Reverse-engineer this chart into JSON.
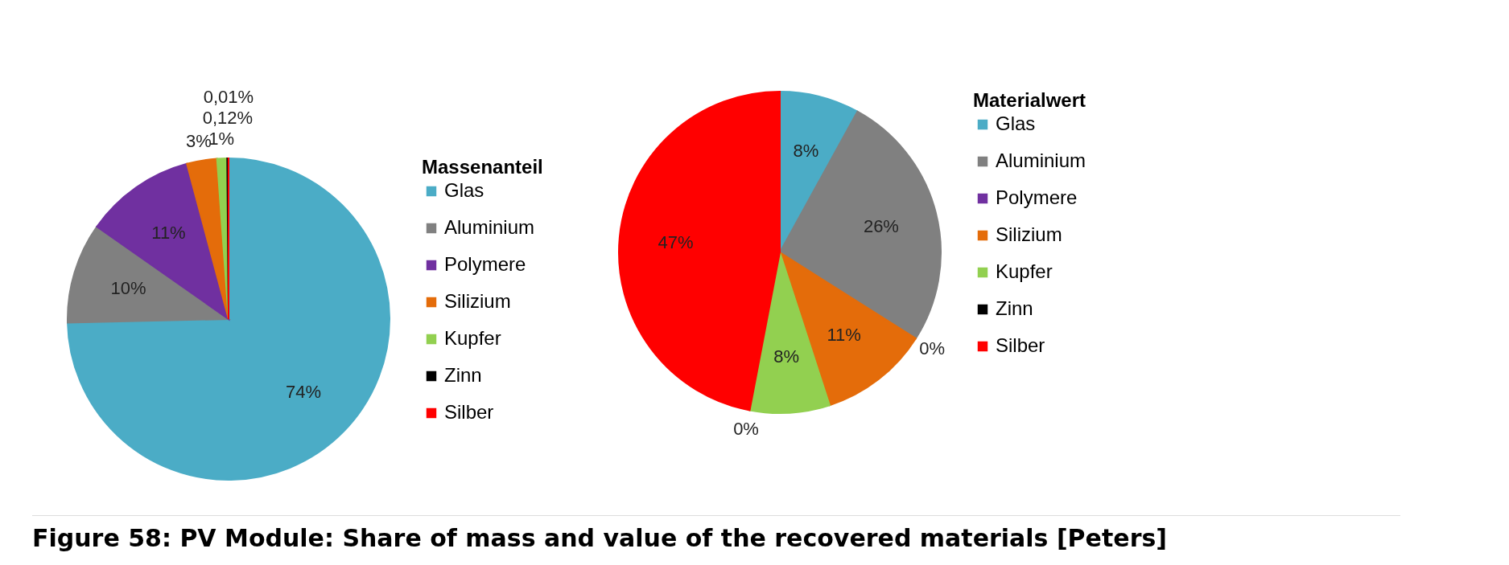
{
  "chart_data": [
    {
      "type": "pie",
      "legend_title": "Massenanteil",
      "legend": "right",
      "categories": [
        "Glas",
        "Aluminium",
        "Polymere",
        "Silizium",
        "Kupfer",
        "Zinn",
        "Silber"
      ],
      "values": [
        74,
        10,
        11,
        3,
        1,
        0.12,
        0.01
      ],
      "colors": [
        "#4bacc6",
        "#808080",
        "#7030a0",
        "#e46c0a",
        "#92d050",
        "#000000",
        "#ff0000"
      ],
      "value_labels": [
        "74%",
        "10%",
        "11%",
        "3%",
        "1%",
        "0,12%",
        "0,01%"
      ],
      "annotations": [
        "Figure 58: PV Module: Share of mass and value of the recovered materials [Peters]"
      ]
    },
    {
      "type": "pie",
      "legend_title": "Materialwert",
      "legend": "right",
      "categories": [
        "Glas",
        "Aluminium",
        "Polymere",
        "Silizium",
        "Kupfer",
        "Zinn",
        "Silber"
      ],
      "values": [
        8,
        26,
        0,
        11,
        8,
        0,
        47
      ],
      "colors": [
        "#4bacc6",
        "#808080",
        "#7030a0",
        "#e46c0a",
        "#92d050",
        "#000000",
        "#ff0000"
      ],
      "value_labels": [
        "8%",
        "26%",
        "0%",
        "11%",
        "8%",
        "0%",
        "47%"
      ]
    }
  ]
}
